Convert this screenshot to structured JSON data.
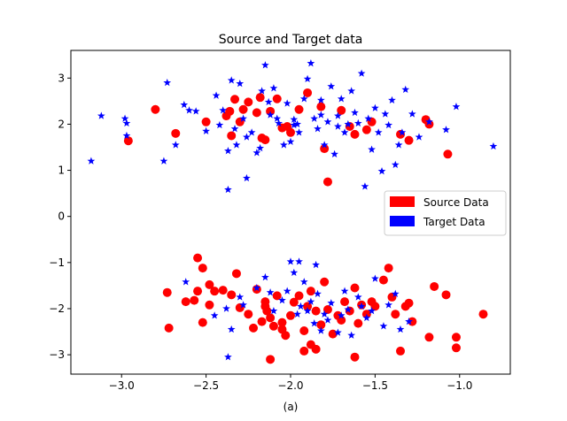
{
  "chart_data": {
    "type": "scatter",
    "title": "Source and Target data",
    "xlabel": "(a)",
    "ylabel": "",
    "xlim": [
      -3.3,
      -0.7
    ],
    "ylim": [
      -3.42,
      3.6
    ],
    "xticks": [
      -3.0,
      -2.5,
      -2.0,
      -1.5,
      -1.0
    ],
    "xtick_labels": [
      "−3.0",
      "−2.5",
      "−2.0",
      "−1.5",
      "−1.0"
    ],
    "yticks": [
      3,
      2,
      1,
      0,
      -1,
      -2,
      -3
    ],
    "ytick_labels": [
      "3",
      "2",
      "1",
      "0",
      "−1",
      "−2",
      "−3"
    ],
    "grid": false,
    "legend": {
      "placement": "center-right"
    },
    "series": [
      {
        "name": "Source Data",
        "marker": "circle",
        "color": "#ff0000",
        "points": [
          [
            -2.8,
            2.32
          ],
          [
            -2.96,
            1.64
          ],
          [
            -2.68,
            1.8
          ],
          [
            -2.5,
            2.05
          ],
          [
            -2.38,
            2.18
          ],
          [
            -2.36,
            2.28
          ],
          [
            -2.33,
            2.54
          ],
          [
            -2.3,
            2.05
          ],
          [
            -2.28,
            2.32
          ],
          [
            -2.25,
            2.48
          ],
          [
            -2.2,
            2.25
          ],
          [
            -2.18,
            2.58
          ],
          [
            -2.17,
            1.7
          ],
          [
            -2.15,
            1.66
          ],
          [
            -2.12,
            2.28
          ],
          [
            -2.08,
            2.55
          ],
          [
            -2.05,
            1.92
          ],
          [
            -2.02,
            1.95
          ],
          [
            -2.0,
            1.82
          ],
          [
            -1.95,
            2.32
          ],
          [
            -1.9,
            2.68
          ],
          [
            -1.82,
            2.38
          ],
          [
            -1.8,
            1.47
          ],
          [
            -1.78,
            0.75
          ],
          [
            -1.7,
            2.3
          ],
          [
            -1.65,
            1.95
          ],
          [
            -1.62,
            1.78
          ],
          [
            -1.55,
            1.88
          ],
          [
            -1.52,
            2.05
          ],
          [
            -1.35,
            1.78
          ],
          [
            -1.3,
            1.65
          ],
          [
            -1.2,
            2.1
          ],
          [
            -1.18,
            2.0
          ],
          [
            -1.07,
            1.35
          ],
          [
            -2.35,
            1.75
          ],
          [
            -2.55,
            -0.9
          ],
          [
            -2.52,
            -1.12
          ],
          [
            -2.48,
            -1.48
          ],
          [
            -2.45,
            -1.62
          ],
          [
            -2.55,
            -1.62
          ],
          [
            -2.57,
            -1.82
          ],
          [
            -2.62,
            -1.85
          ],
          [
            -2.52,
            -2.3
          ],
          [
            -2.48,
            -1.92
          ],
          [
            -2.4,
            -1.6
          ],
          [
            -2.35,
            -1.7
          ],
          [
            -2.32,
            -1.24
          ],
          [
            -2.3,
            -1.98
          ],
          [
            -2.25,
            -2.12
          ],
          [
            -2.22,
            -2.42
          ],
          [
            -2.2,
            -1.58
          ],
          [
            -2.17,
            -2.28
          ],
          [
            -2.15,
            -1.95
          ],
          [
            -2.14,
            -2.05
          ],
          [
            -2.12,
            -2.2
          ],
          [
            -2.1,
            -2.38
          ],
          [
            -2.08,
            -1.72
          ],
          [
            -2.05,
            -2.45
          ],
          [
            -2.03,
            -2.58
          ],
          [
            -2.0,
            -2.15
          ],
          [
            -1.98,
            -1.86
          ],
          [
            -1.95,
            -1.72
          ],
          [
            -1.92,
            -2.48
          ],
          [
            -1.9,
            -1.95
          ],
          [
            -1.88,
            -1.62
          ],
          [
            -1.85,
            -2.05
          ],
          [
            -1.82,
            -2.35
          ],
          [
            -1.8,
            -1.42
          ],
          [
            -1.78,
            -2.02
          ],
          [
            -1.75,
            -2.55
          ],
          [
            -1.72,
            -2.15
          ],
          [
            -1.7,
            -2.25
          ],
          [
            -1.68,
            -1.85
          ],
          [
            -1.65,
            -2.05
          ],
          [
            -1.62,
            -1.55
          ],
          [
            -1.6,
            -2.32
          ],
          [
            -1.58,
            -1.92
          ],
          [
            -1.55,
            -2.12
          ],
          [
            -1.52,
            -1.85
          ],
          [
            -1.5,
            -1.95
          ],
          [
            -1.45,
            -1.38
          ],
          [
            -1.42,
            -1.12
          ],
          [
            -1.4,
            -1.75
          ],
          [
            -1.38,
            -2.12
          ],
          [
            -1.32,
            -1.95
          ],
          [
            -1.3,
            -1.88
          ],
          [
            -1.28,
            -2.28
          ],
          [
            -1.18,
            -2.62
          ],
          [
            -1.15,
            -1.52
          ],
          [
            -1.08,
            -1.7
          ],
          [
            -1.02,
            -2.62
          ],
          [
            -1.02,
            -2.85
          ],
          [
            -0.86,
            -2.12
          ],
          [
            -2.12,
            -3.1
          ],
          [
            -1.62,
            -3.05
          ],
          [
            -1.35,
            -2.92
          ],
          [
            -1.92,
            -2.92
          ],
          [
            -2.73,
            -1.65
          ],
          [
            -2.72,
            -2.42
          ],
          [
            -2.05,
            -2.3
          ],
          [
            -1.88,
            -2.78
          ],
          [
            -2.15,
            -1.85
          ],
          [
            -1.85,
            -2.88
          ]
        ]
      },
      {
        "name": "Target Data",
        "marker": "star",
        "color": "#0000ff",
        "points": [
          [
            -3.18,
            1.2
          ],
          [
            -3.12,
            2.18
          ],
          [
            -2.98,
            2.12
          ],
          [
            -2.97,
            1.75
          ],
          [
            -2.97,
            2.02
          ],
          [
            -2.75,
            1.2
          ],
          [
            -2.73,
            2.9
          ],
          [
            -2.68,
            1.55
          ],
          [
            -2.63,
            2.42
          ],
          [
            -2.6,
            2.3
          ],
          [
            -2.56,
            2.28
          ],
          [
            -2.5,
            1.85
          ],
          [
            -2.44,
            2.62
          ],
          [
            -2.42,
            1.98
          ],
          [
            -2.4,
            2.3
          ],
          [
            -2.37,
            1.42
          ],
          [
            -2.35,
            2.95
          ],
          [
            -2.33,
            1.9
          ],
          [
            -2.32,
            1.55
          ],
          [
            -2.3,
            2.88
          ],
          [
            -2.28,
            2.12
          ],
          [
            -2.26,
            1.72
          ],
          [
            -2.23,
            1.82
          ],
          [
            -2.2,
            1.38
          ],
          [
            -2.18,
            1.48
          ],
          [
            -2.17,
            2.72
          ],
          [
            -2.15,
            3.28
          ],
          [
            -2.13,
            2.48
          ],
          [
            -2.12,
            2.2
          ],
          [
            -2.1,
            2.78
          ],
          [
            -2.07,
            2.02
          ],
          [
            -2.04,
            1.55
          ],
          [
            -2.02,
            2.45
          ],
          [
            -2.0,
            1.62
          ],
          [
            -1.98,
            2.1
          ],
          [
            -1.96,
            2.0
          ],
          [
            -1.95,
            1.82
          ],
          [
            -1.92,
            2.55
          ],
          [
            -1.9,
            2.98
          ],
          [
            -1.88,
            3.32
          ],
          [
            -1.86,
            2.12
          ],
          [
            -1.84,
            1.9
          ],
          [
            -1.82,
            2.52
          ],
          [
            -1.8,
            1.55
          ],
          [
            -1.78,
            2.05
          ],
          [
            -1.76,
            2.82
          ],
          [
            -1.74,
            1.35
          ],
          [
            -1.72,
            2.18
          ],
          [
            -1.7,
            2.55
          ],
          [
            -1.68,
            1.82
          ],
          [
            -1.66,
            2.0
          ],
          [
            -1.64,
            2.72
          ],
          [
            -1.62,
            2.25
          ],
          [
            -1.6,
            2.02
          ],
          [
            -1.58,
            3.1
          ],
          [
            -1.56,
            0.65
          ],
          [
            -1.54,
            2.12
          ],
          [
            -1.52,
            1.45
          ],
          [
            -1.5,
            2.35
          ],
          [
            -1.48,
            1.82
          ],
          [
            -1.46,
            0.98
          ],
          [
            -1.44,
            2.22
          ],
          [
            -1.42,
            1.98
          ],
          [
            -1.4,
            2.52
          ],
          [
            -1.38,
            1.12
          ],
          [
            -1.36,
            1.55
          ],
          [
            -1.34,
            1.82
          ],
          [
            -1.32,
            2.75
          ],
          [
            -1.28,
            2.22
          ],
          [
            -1.24,
            1.72
          ],
          [
            -1.18,
            2.05
          ],
          [
            -1.08,
            1.88
          ],
          [
            -1.02,
            2.38
          ],
          [
            -0.8,
            1.52
          ],
          [
            -2.37,
            0.58
          ],
          [
            -2.26,
            0.83
          ],
          [
            -1.98,
            1.98
          ],
          [
            -2.08,
            2.12
          ],
          [
            -1.82,
            2.2
          ],
          [
            -1.72,
            1.95
          ],
          [
            -2.62,
            -1.42
          ],
          [
            -2.45,
            -2.15
          ],
          [
            -2.38,
            -2.0
          ],
          [
            -2.35,
            -2.45
          ],
          [
            -2.3,
            -1.75
          ],
          [
            -2.28,
            -1.92
          ],
          [
            -2.2,
            -1.55
          ],
          [
            -2.12,
            -1.65
          ],
          [
            -2.1,
            -2.05
          ],
          [
            -2.05,
            -1.82
          ],
          [
            -2.02,
            -1.62
          ],
          [
            -2.0,
            -0.98
          ],
          [
            -1.98,
            -1.22
          ],
          [
            -1.96,
            -2.12
          ],
          [
            -1.94,
            -1.95
          ],
          [
            -1.92,
            -1.42
          ],
          [
            -1.9,
            -2.05
          ],
          [
            -1.88,
            -1.85
          ],
          [
            -1.86,
            -2.32
          ],
          [
            -1.84,
            -1.68
          ],
          [
            -1.82,
            -2.48
          ],
          [
            -1.8,
            -2.12
          ],
          [
            -1.78,
            -2.25
          ],
          [
            -1.76,
            -1.88
          ],
          [
            -1.72,
            -2.52
          ],
          [
            -1.7,
            -2.15
          ],
          [
            -1.68,
            -1.62
          ],
          [
            -1.66,
            -2.02
          ],
          [
            -1.64,
            -2.58
          ],
          [
            -1.6,
            -1.75
          ],
          [
            -1.58,
            -1.95
          ],
          [
            -1.55,
            -2.2
          ],
          [
            -1.52,
            -2.05
          ],
          [
            -1.5,
            -1.35
          ],
          [
            -1.45,
            -2.38
          ],
          [
            -1.42,
            -1.92
          ],
          [
            -1.38,
            -1.68
          ],
          [
            -1.35,
            -2.45
          ],
          [
            -1.3,
            -2.28
          ],
          [
            -2.37,
            -3.05
          ],
          [
            -1.95,
            -0.98
          ],
          [
            -1.85,
            -1.05
          ],
          [
            -2.15,
            -1.32
          ]
        ]
      }
    ]
  }
}
